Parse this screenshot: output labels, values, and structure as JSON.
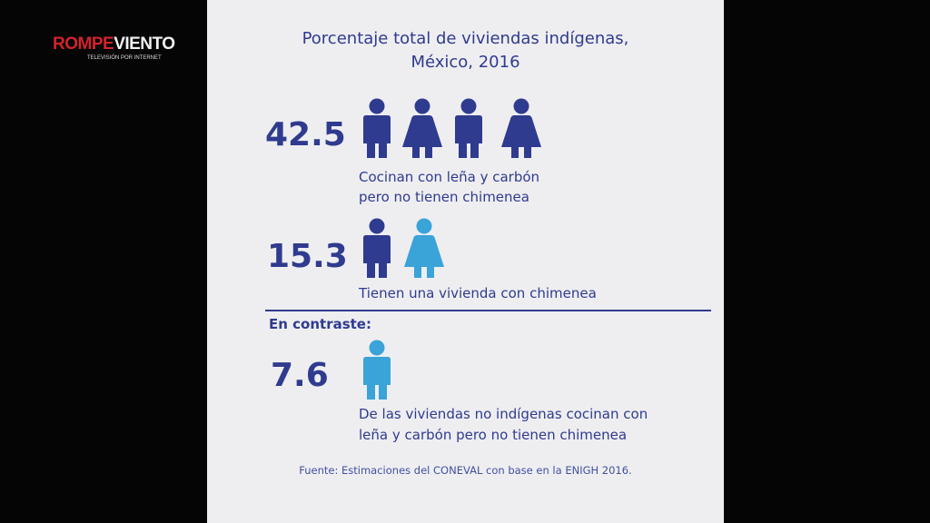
{
  "logo": {
    "name_red": "ROMPE",
    "name_white": "VIENTO",
    "tagline": "TELEVISIÓN POR INTERNET"
  },
  "title": [
    "Porcentaje total de viviendas indígenas,",
    "México, 2016"
  ],
  "items": [
    {
      "value": 42.5,
      "description": [
        "Cocinan con leña y carbón",
        "pero no tienen chimenea"
      ]
    },
    {
      "value": 15.3,
      "description": [
        "Tienen una vivienda con chimenea"
      ]
    },
    {
      "value": 7.6,
      "description": [
        "De las viviendas no indígenas cocinan con",
        "leña y carbón pero no tienen chimenea"
      ]
    }
  ],
  "contrast_label": "En contraste:",
  "source": "Fuente: Estimaciones del CONEVAL con base en la ENIGH 2016."
}
